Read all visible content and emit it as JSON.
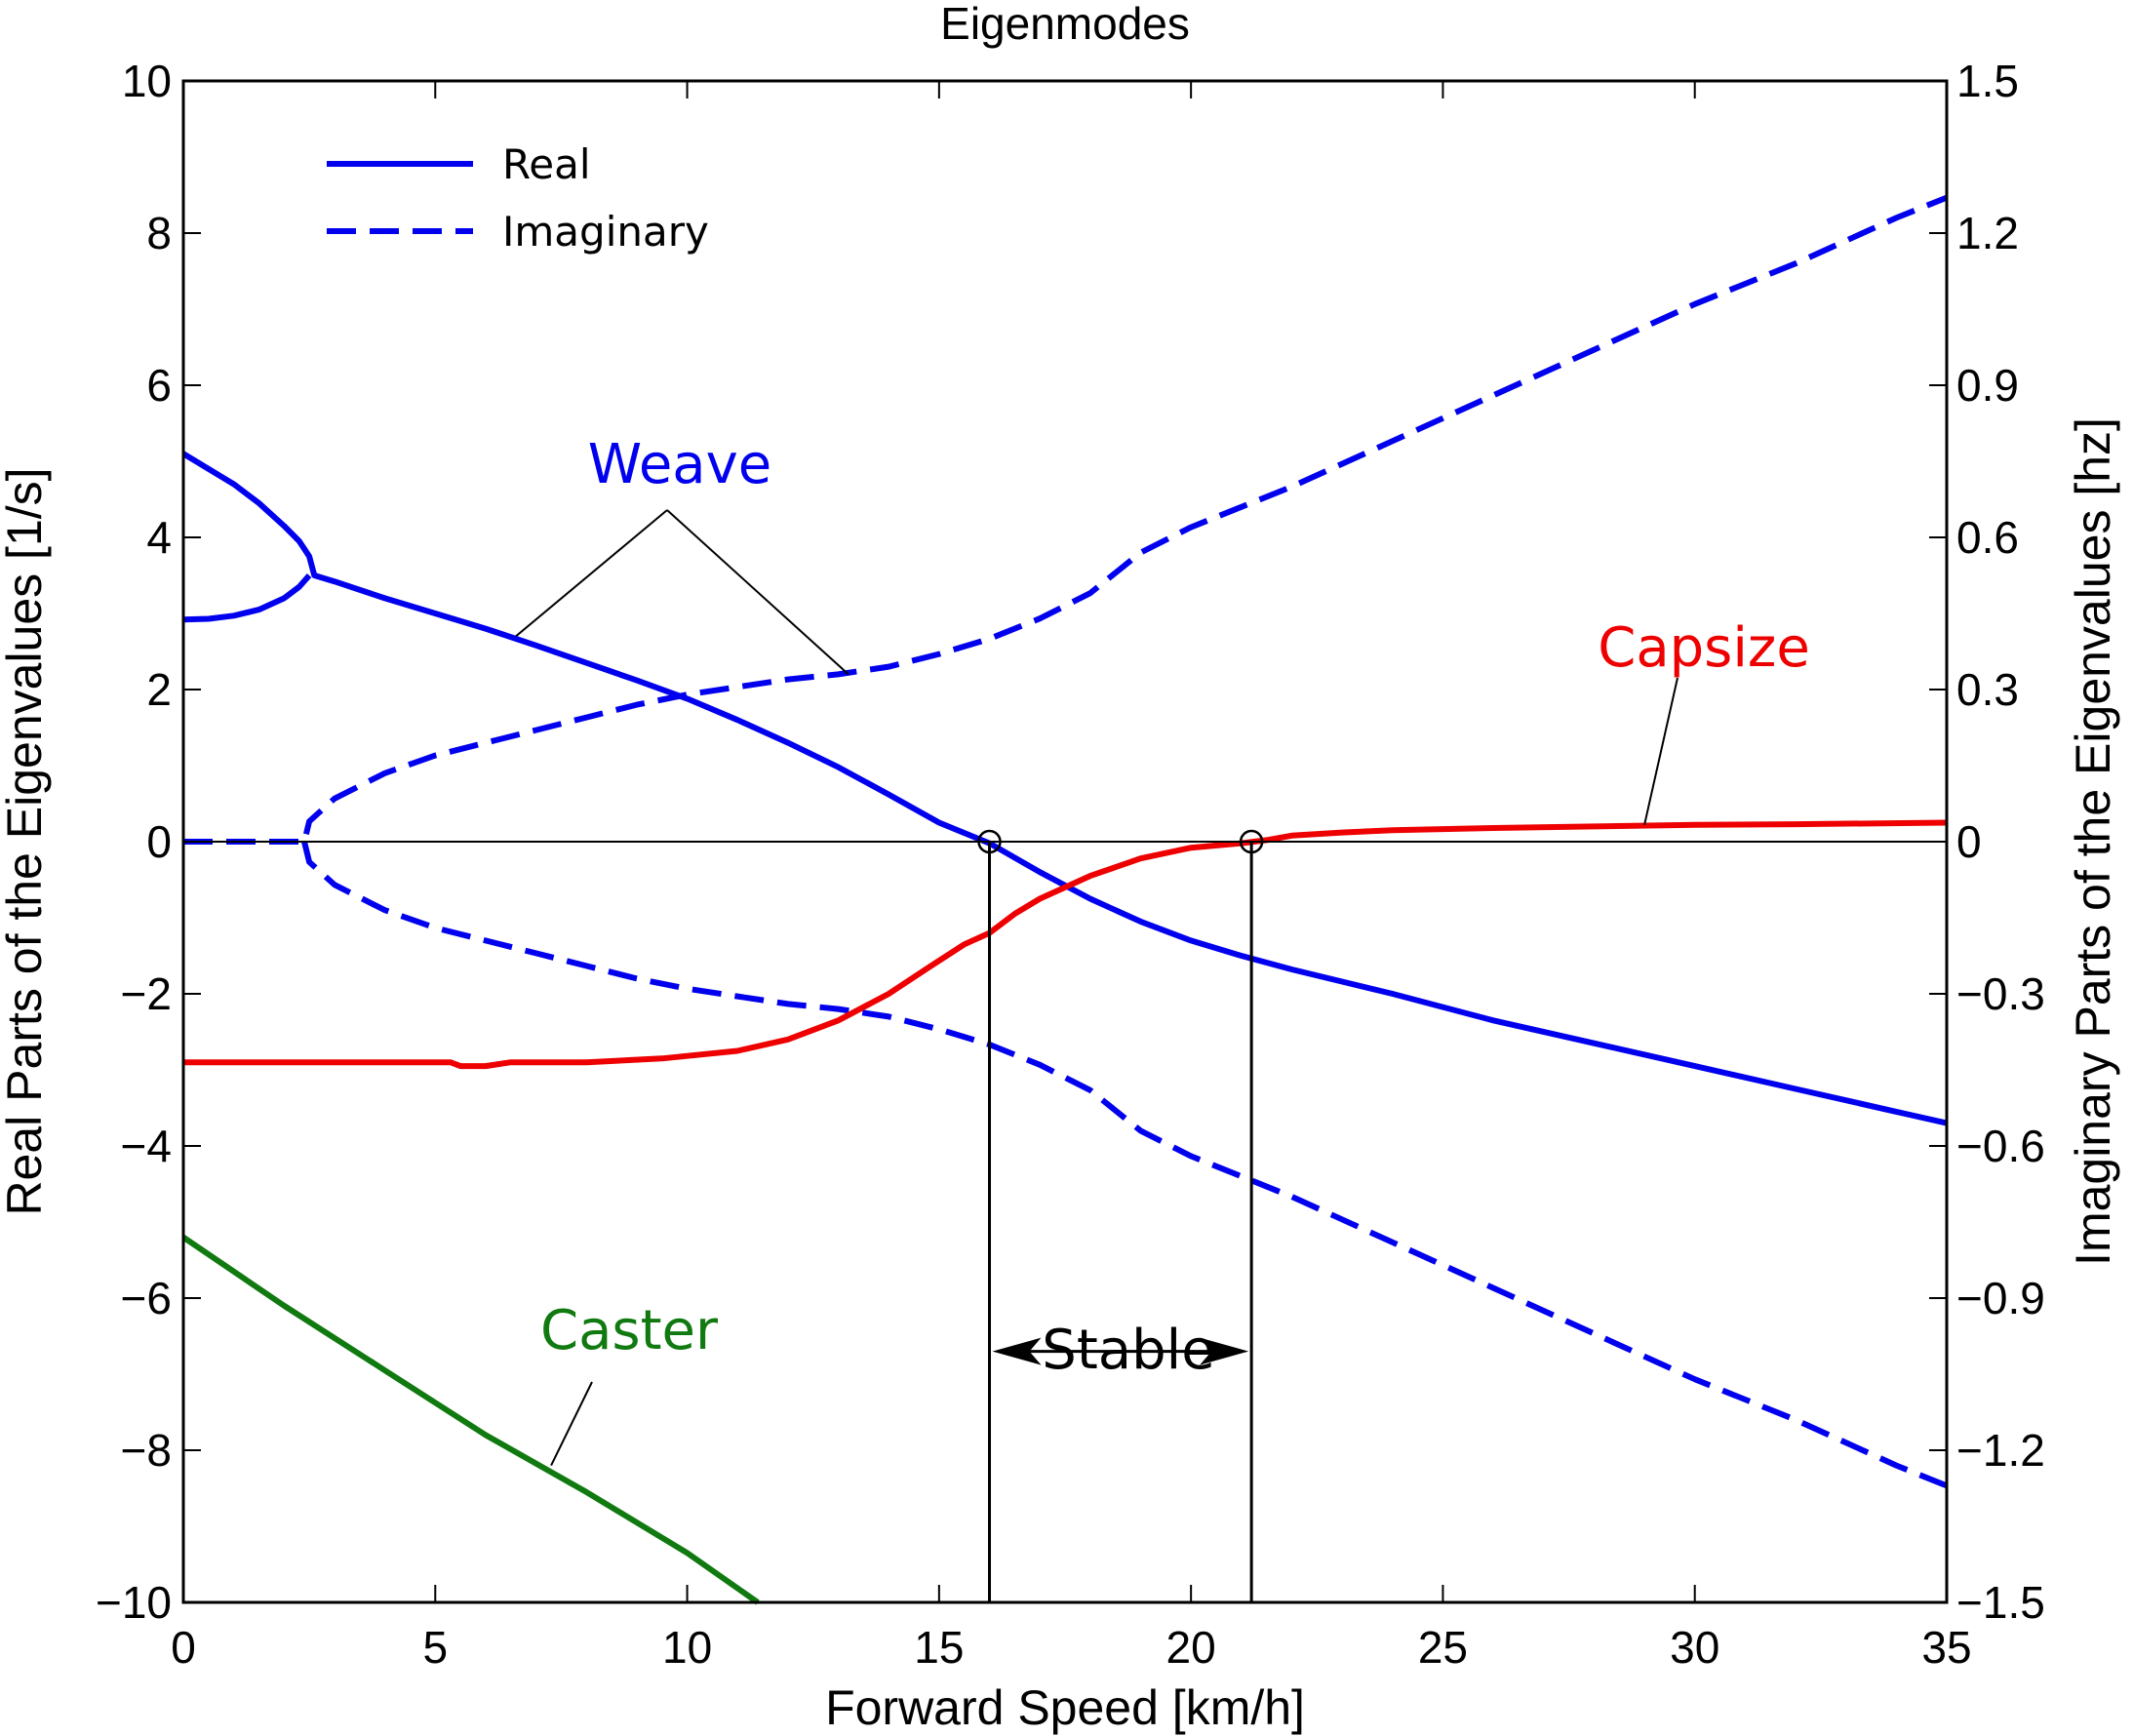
{
  "chart_data": {
    "type": "line",
    "title": "Eigenmodes",
    "xlabel": "Forward Speed [km/h]",
    "ylabel_left": "Real Parts of the Eigenvalues [1/s]",
    "ylabel_right": "Imaginary Parts of the Eigenvalues [hz]",
    "xlim": [
      0,
      35
    ],
    "ylim_left": [
      -10,
      10
    ],
    "ylim_right": [
      -1.5,
      1.5
    ],
    "xticks": [
      "0",
      "5",
      "10",
      "15",
      "20",
      "25",
      "30",
      "35"
    ],
    "yticks_left": [
      "10",
      "8",
      "6",
      "4",
      "2",
      "0",
      "−2",
      "−4",
      "−6",
      "−8",
      "−10"
    ],
    "yticks_right": [
      "1.5",
      "1.2",
      "0.9",
      "0.6",
      "0.3",
      "0",
      "−0.3",
      "−0.6",
      "−0.9",
      "−1.2",
      "−1.5"
    ],
    "grid": false,
    "legend_position": "top-left",
    "legend": [
      {
        "label": "Real",
        "style": "solid"
      },
      {
        "label": "Imaginary",
        "style": "dashed"
      }
    ],
    "colors": {
      "weave": "#0000ee",
      "capsize": "#ee0000",
      "caster": "#107a10"
    },
    "series": [
      {
        "mode": "weave",
        "part": "real",
        "points": [
          [
            0,
            5.1
          ],
          [
            0.5,
            4.9
          ],
          [
            1,
            4.7
          ],
          [
            1.5,
            4.45
          ],
          [
            2,
            4.15
          ],
          [
            2.3,
            3.95
          ],
          [
            2.5,
            3.75
          ],
          [
            2.6,
            3.5
          ],
          [
            3,
            3.42
          ],
          [
            4,
            3.2
          ],
          [
            5,
            3.0
          ],
          [
            6,
            2.8
          ],
          [
            7,
            2.58
          ],
          [
            8,
            2.35
          ],
          [
            9,
            2.12
          ],
          [
            10,
            1.88
          ],
          [
            11,
            1.6
          ],
          [
            12,
            1.3
          ],
          [
            13,
            0.98
          ],
          [
            14,
            0.62
          ],
          [
            15,
            0.25
          ],
          [
            16,
            -0.02
          ],
          [
            17,
            -0.4
          ],
          [
            18,
            -0.75
          ],
          [
            19,
            -1.05
          ],
          [
            20,
            -1.3
          ],
          [
            21,
            -1.5
          ],
          [
            22,
            -1.68
          ],
          [
            24,
            -2.0
          ],
          [
            26,
            -2.35
          ],
          [
            28,
            -2.65
          ],
          [
            30,
            -2.95
          ],
          [
            32,
            -3.25
          ],
          [
            34,
            -3.55
          ],
          [
            35,
            -3.7
          ]
        ]
      },
      {
        "mode": "weave",
        "part": "real",
        "points": [
          [
            0,
            2.92
          ],
          [
            0.5,
            2.93
          ],
          [
            1,
            2.97
          ],
          [
            1.5,
            3.05
          ],
          [
            2,
            3.2
          ],
          [
            2.3,
            3.35
          ],
          [
            2.5,
            3.5
          ]
        ]
      },
      {
        "mode": "weave",
        "part": "imag",
        "points": [
          [
            0,
            0
          ],
          [
            2.4,
            0
          ],
          [
            2.5,
            0.04
          ],
          [
            3,
            0.085
          ],
          [
            4,
            0.135
          ],
          [
            5,
            0.17
          ],
          [
            6,
            0.195
          ],
          [
            7,
            0.22
          ],
          [
            8,
            0.245
          ],
          [
            9,
            0.27
          ],
          [
            10,
            0.29
          ],
          [
            11,
            0.305
          ],
          [
            12,
            0.32
          ],
          [
            13,
            0.33
          ],
          [
            14,
            0.345
          ],
          [
            15,
            0.37
          ],
          [
            16,
            0.4
          ],
          [
            17,
            0.44
          ],
          [
            18,
            0.49
          ],
          [
            19,
            0.57
          ],
          [
            20,
            0.62
          ],
          [
            21,
            0.66
          ],
          [
            22,
            0.7
          ],
          [
            24,
            0.79
          ],
          [
            26,
            0.88
          ],
          [
            28,
            0.97
          ],
          [
            30,
            1.06
          ],
          [
            32,
            1.14
          ],
          [
            34,
            1.23
          ],
          [
            35,
            1.27
          ]
        ]
      },
      {
        "mode": "weave",
        "part": "imag",
        "points": [
          [
            2.4,
            0
          ],
          [
            2.5,
            -0.04
          ],
          [
            3,
            -0.085
          ],
          [
            4,
            -0.135
          ],
          [
            5,
            -0.17
          ],
          [
            6,
            -0.195
          ],
          [
            7,
            -0.22
          ],
          [
            8,
            -0.245
          ],
          [
            9,
            -0.27
          ],
          [
            10,
            -0.29
          ],
          [
            11,
            -0.305
          ],
          [
            12,
            -0.32
          ],
          [
            13,
            -0.33
          ],
          [
            14,
            -0.345
          ],
          [
            15,
            -0.37
          ],
          [
            16,
            -0.4
          ],
          [
            17,
            -0.44
          ],
          [
            18,
            -0.49
          ],
          [
            19,
            -0.57
          ],
          [
            20,
            -0.62
          ],
          [
            21,
            -0.66
          ],
          [
            22,
            -0.7
          ],
          [
            24,
            -0.79
          ],
          [
            26,
            -0.88
          ],
          [
            28,
            -0.97
          ],
          [
            30,
            -1.06
          ],
          [
            32,
            -1.14
          ],
          [
            34,
            -1.23
          ],
          [
            35,
            -1.27
          ]
        ]
      },
      {
        "mode": "capsize",
        "part": "real",
        "points": [
          [
            0,
            -2.9
          ],
          [
            5.3,
            -2.9
          ],
          [
            5.5,
            -2.95
          ],
          [
            6,
            -2.95
          ],
          [
            6.5,
            -2.9
          ],
          [
            8,
            -2.9
          ],
          [
            9.5,
            -2.85
          ],
          [
            11,
            -2.75
          ],
          [
            12,
            -2.6
          ],
          [
            13,
            -2.35
          ],
          [
            14,
            -2.0
          ],
          [
            14.8,
            -1.65
          ],
          [
            15.5,
            -1.35
          ],
          [
            16,
            -1.2
          ],
          [
            16.5,
            -0.95
          ],
          [
            17,
            -0.75
          ],
          [
            18,
            -0.45
          ],
          [
            19,
            -0.22
          ],
          [
            20,
            -0.08
          ],
          [
            21,
            -0.02
          ],
          [
            21.5,
            0.02
          ],
          [
            22,
            0.08
          ],
          [
            23,
            0.12
          ],
          [
            24,
            0.15
          ],
          [
            26,
            0.18
          ],
          [
            28,
            0.2
          ],
          [
            30,
            0.22
          ],
          [
            32,
            0.23
          ],
          [
            35,
            0.25
          ]
        ]
      },
      {
        "mode": "caster",
        "part": "real",
        "points": [
          [
            0,
            -5.2
          ],
          [
            2,
            -6.1
          ],
          [
            4,
            -6.95
          ],
          [
            6,
            -7.8
          ],
          [
            8,
            -8.55
          ],
          [
            10,
            -9.35
          ],
          [
            11.4,
            -10
          ]
        ]
      }
    ],
    "annotations": [
      {
        "text": "Weave",
        "color": "#0000ee"
      },
      {
        "text": "Capsize",
        "color": "#ee0000"
      },
      {
        "text": "Caster",
        "color": "#107a10"
      },
      {
        "text": "Stable",
        "color": "#000000"
      }
    ],
    "stability_bounds": [
      16.0,
      21.2
    ]
  }
}
